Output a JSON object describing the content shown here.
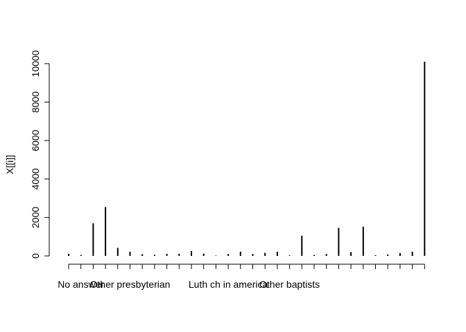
{
  "chart_data": {
    "type": "bar",
    "ylabel": "X[[i]]",
    "ylim": [
      0,
      10000
    ],
    "yticks": [
      0,
      2000,
      4000,
      6000,
      8000,
      10000
    ],
    "x_tick_labels_shown": [
      "No answer",
      "Other presbyterian",
      "Luth ch in america",
      "Other baptists"
    ],
    "x_tick_label_positions": [
      1,
      5,
      13,
      18
    ],
    "values": [
      110,
      50,
      1700,
      2540,
      420,
      220,
      90,
      60,
      110,
      110,
      250,
      120,
      20,
      100,
      220,
      100,
      160,
      220,
      30,
      1050,
      50,
      100,
      1460,
      200,
      1520,
      40,
      80,
      150,
      220,
      10100
    ]
  }
}
